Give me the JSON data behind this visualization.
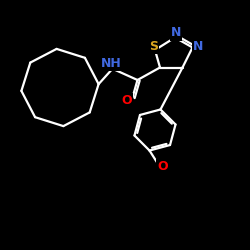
{
  "background_color": "#000000",
  "bond_color": "#ffffff",
  "atom_colors": {
    "S": "#DAA520",
    "N": "#4169E1",
    "O": "#FF0000"
  },
  "figsize": [
    2.5,
    2.5
  ],
  "dpi": 100,
  "xlim": [
    0,
    10
  ],
  "ylim": [
    0,
    10
  ]
}
